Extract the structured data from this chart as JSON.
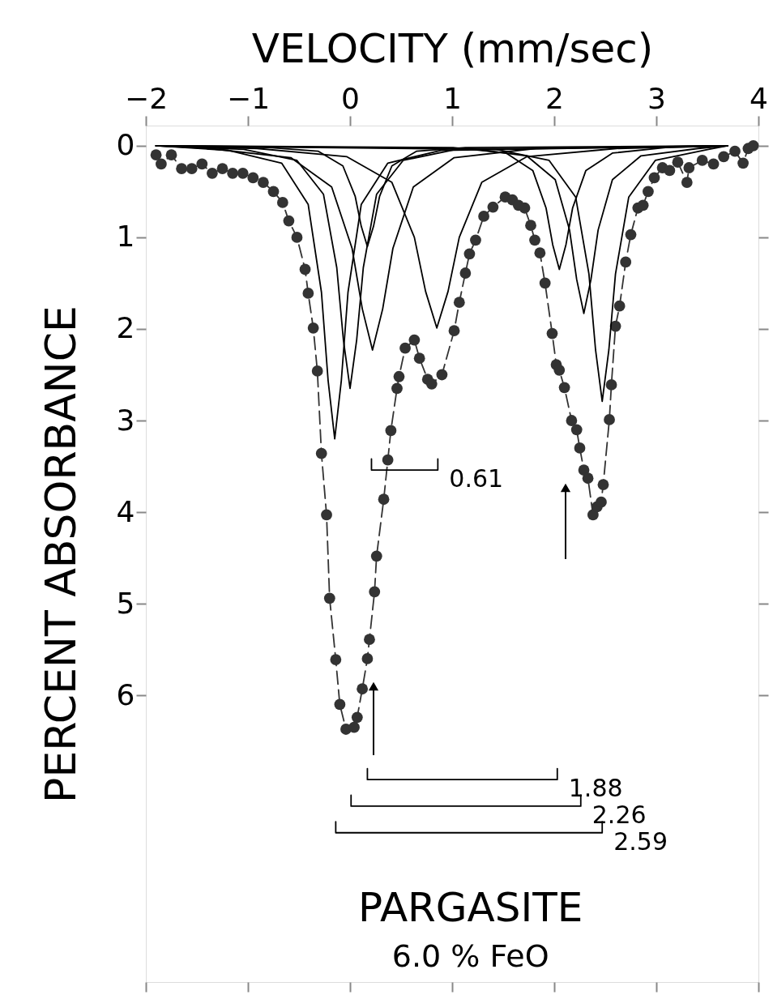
{
  "chart_data": {
    "type": "line",
    "xlabel": "VELOCITY (mm/sec)",
    "ylabel": "PERCENT ABSORBANCE",
    "xlim": [
      -2,
      4
    ],
    "xticks": [
      -2,
      -1,
      0,
      1,
      2,
      3,
      4
    ],
    "ylim": [
      9.13,
      -0.22
    ],
    "yticks": [
      0,
      1,
      2,
      3,
      4,
      5,
      6
    ],
    "grid": false,
    "series": [
      {
        "color": "#333333",
        "marker": "circle",
        "line_style": "dashed",
        "x": [
          -1.9,
          -1.85,
          -1.75,
          -1.65,
          -1.55,
          -1.45,
          -1.35,
          -1.25,
          -1.15,
          -1.05,
          -0.95,
          -0.85,
          -0.75,
          -0.66,
          -0.6,
          -0.52,
          -0.44,
          -0.41,
          -0.36,
          -0.32,
          -0.28,
          -0.23,
          -0.2,
          -0.14,
          -0.1,
          -0.04,
          0.04,
          0.07,
          0.12,
          0.17,
          0.19,
          0.24,
          0.26,
          0.33,
          0.37,
          0.4,
          0.46,
          0.48,
          0.54,
          0.63,
          0.68,
          0.76,
          0.8,
          0.9,
          1.02,
          1.07,
          1.13,
          1.17,
          1.23,
          1.31,
          1.4,
          1.52,
          1.59,
          1.65,
          1.71,
          1.77,
          1.81,
          1.86,
          1.91,
          1.98,
          2.02,
          2.05,
          2.1,
          2.17,
          2.22,
          2.25,
          2.29,
          2.33,
          2.38,
          2.42,
          2.46,
          2.48,
          2.54,
          2.56,
          2.6,
          2.64,
          2.7,
          2.75,
          2.82,
          2.87,
          2.92,
          2.98,
          3.06,
          3.13,
          3.21,
          3.3,
          3.32,
          3.45,
          3.56,
          3.66,
          3.77,
          3.85,
          3.9,
          3.95
        ],
        "values": [
          0.1,
          0.2,
          0.1,
          0.25,
          0.25,
          0.2,
          0.3,
          0.25,
          0.3,
          0.3,
          0.35,
          0.4,
          0.5,
          0.62,
          0.82,
          1.0,
          1.35,
          1.61,
          1.99,
          2.46,
          3.36,
          4.03,
          4.94,
          5.61,
          6.1,
          6.37,
          6.35,
          6.24,
          5.93,
          5.6,
          5.39,
          4.87,
          4.48,
          3.86,
          3.43,
          3.11,
          2.65,
          2.52,
          2.21,
          2.12,
          2.32,
          2.55,
          2.6,
          2.5,
          2.02,
          1.71,
          1.39,
          1.18,
          1.03,
          0.77,
          0.67,
          0.56,
          0.59,
          0.65,
          0.68,
          0.87,
          1.03,
          1.17,
          1.5,
          2.05,
          2.39,
          2.45,
          2.64,
          3.0,
          3.1,
          3.3,
          3.54,
          3.63,
          4.03,
          3.94,
          3.89,
          3.7,
          2.99,
          2.61,
          1.97,
          1.75,
          1.27,
          0.97,
          0.68,
          0.65,
          0.5,
          0.35,
          0.24,
          0.27,
          0.18,
          0.4,
          0.24,
          0.16,
          0.2,
          0.12,
          0.06,
          0.19,
          0.03,
          0.0
        ]
      },
      {
        "type": "line",
        "color": "#000000",
        "marker": "none",
        "line_style": "solid",
        "x": [
          -1.9,
          -1.19,
          -0.67,
          -0.41,
          -0.28,
          -0.215,
          -0.15,
          -0.085,
          -0.02,
          0.11,
          0.37,
          0.89,
          3.7
        ],
        "values": [
          0,
          0.05,
          0.19,
          0.64,
          1.6,
          2.56,
          3.2,
          2.56,
          1.6,
          0.64,
          0.19,
          0.05,
          0
        ]
      },
      {
        "type": "line",
        "color": "#000000",
        "marker": "none",
        "line_style": "solid",
        "x": [
          -1.9,
          -1.04,
          -0.52,
          -0.26,
          -0.13,
          -0.065,
          0,
          0.065,
          0.13,
          0.26,
          0.52,
          1.04,
          3.7
        ],
        "values": [
          0,
          0.04,
          0.16,
          0.53,
          1.33,
          2.12,
          2.65,
          2.12,
          1.33,
          0.53,
          0.16,
          0.04,
          0
        ]
      },
      {
        "type": "line",
        "color": "#000000",
        "marker": "none",
        "line_style": "solid",
        "x": [
          -1.9,
          -1.38,
          -0.58,
          -0.18,
          0.02,
          0.12,
          0.22,
          0.32,
          0.42,
          0.62,
          1.02,
          1.82,
          3.7
        ],
        "values": [
          0,
          0.03,
          0.13,
          0.45,
          1.12,
          1.78,
          2.23,
          1.78,
          1.12,
          0.45,
          0.13,
          0.03,
          0
        ]
      },
      {
        "type": "line",
        "color": "#000000",
        "marker": "none",
        "line_style": "solid",
        "x": [
          -1.9,
          -0.79,
          -0.31,
          -0.07,
          0.05,
          0.11,
          0.17,
          0.23,
          0.29,
          0.41,
          0.65,
          1.13,
          3.7
        ],
        "values": [
          0,
          0.02,
          0.06,
          0.22,
          0.55,
          0.88,
          1.1,
          0.88,
          0.55,
          0.22,
          0.06,
          0.02,
          0
        ]
      },
      {
        "type": "line",
        "color": "#000000",
        "marker": "none",
        "line_style": "solid",
        "x": [
          -1.9,
          -0.91,
          -0.03,
          0.41,
          0.63,
          0.74,
          0.85,
          0.96,
          1.07,
          1.29,
          1.73,
          2.61,
          3.7
        ],
        "values": [
          0,
          0.03,
          0.12,
          0.4,
          1.0,
          1.59,
          1.99,
          1.59,
          1.0,
          0.4,
          0.12,
          0.03,
          0
        ]
      },
      {
        "type": "line",
        "color": "#000000",
        "marker": "none",
        "line_style": "solid",
        "x": [
          -1.9,
          1.01,
          1.53,
          1.79,
          1.92,
          1.985,
          2.05,
          2.115,
          2.18,
          2.31,
          2.57,
          3.09,
          3.7
        ],
        "values": [
          0,
          0.02,
          0.08,
          0.27,
          0.68,
          1.08,
          1.35,
          1.08,
          0.68,
          0.27,
          0.08,
          0.02,
          0
        ]
      },
      {
        "type": "line",
        "color": "#000000",
        "marker": "none",
        "line_style": "solid",
        "x": [
          -1.9,
          1.17,
          1.73,
          2.01,
          2.15,
          2.22,
          2.29,
          2.36,
          2.43,
          2.57,
          2.85,
          3.41,
          3.7
        ],
        "values": [
          0,
          0.03,
          0.11,
          0.37,
          0.92,
          1.46,
          1.83,
          1.46,
          0.92,
          0.37,
          0.11,
          0.03,
          0
        ]
      },
      {
        "type": "line",
        "color": "#000000",
        "marker": "none",
        "line_style": "solid",
        "x": [
          -1.9,
          1.43,
          1.95,
          2.21,
          2.34,
          2.405,
          2.47,
          2.535,
          2.6,
          2.73,
          2.99,
          3.51,
          3.7
        ],
        "values": [
          0,
          0.04,
          0.16,
          0.56,
          1.4,
          2.23,
          2.79,
          2.23,
          1.4,
          0.56,
          0.16,
          0.04,
          0
        ]
      },
      {
        "color": "#000000",
        "marker": "none",
        "line_style": "solid",
        "x": [
          0.21,
          0.21,
          0.86,
          0.86
        ],
        "values": [
          3.42,
          3.54,
          3.54,
          3.42
        ]
      },
      {
        "color": "#000000",
        "marker": "none",
        "line_style": "solid",
        "x": [
          0.17,
          0.17,
          2.03,
          2.03
        ],
        "values": [
          6.8,
          6.92,
          6.92,
          6.8
        ]
      },
      {
        "color": "#000000",
        "marker": "none",
        "line_style": "solid",
        "x": [
          0.01,
          0.01,
          2.26,
          2.26
        ],
        "values": [
          7.09,
          7.21,
          7.21,
          7.09
        ]
      },
      {
        "color": "#000000",
        "marker": "none",
        "line_style": "solid",
        "x": [
          -0.14,
          -0.14,
          2.47,
          2.47
        ],
        "values": [
          7.38,
          7.5,
          7.5,
          7.38
        ]
      }
    ],
    "annotations": [
      {
        "text": "0.61",
        "x": 0.86,
        "y": 3.54
      },
      {
        "text": "1.88",
        "x": 2.03,
        "y": 6.92
      },
      {
        "text": "2.26",
        "x": 2.26,
        "y": 7.21
      },
      {
        "text": "2.59",
        "x": 2.47,
        "y": 7.5
      },
      "PARGASITE",
      "6.0 % FeO"
    ]
  }
}
